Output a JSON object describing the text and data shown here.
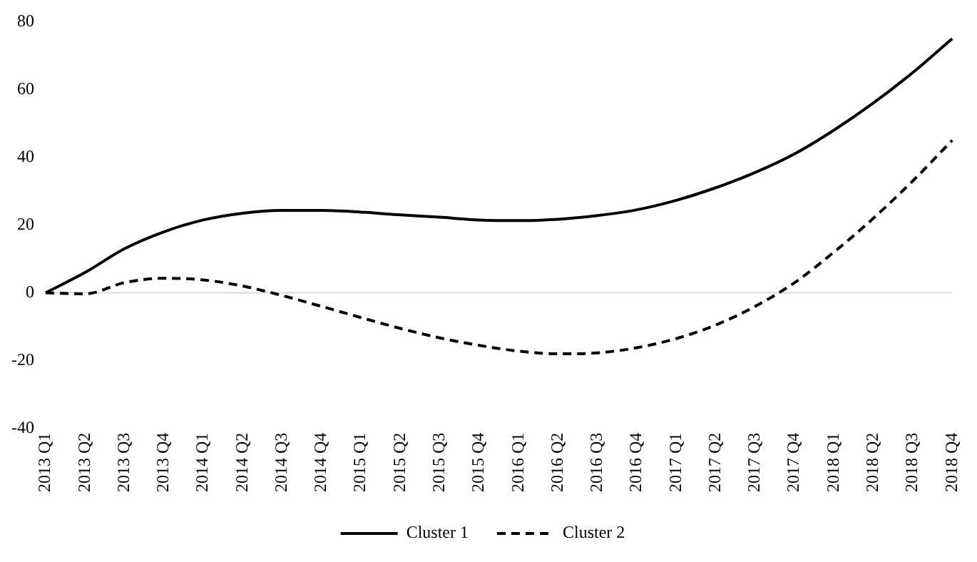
{
  "chart_data": {
    "type": "line",
    "categories": [
      "2013 Q1",
      "2013 Q2",
      "2013 Q3",
      "2013 Q4",
      "2014 Q1",
      "2014 Q2",
      "2014 Q3",
      "2014 Q4",
      "2015 Q1",
      "2015 Q2",
      "2015 Q3",
      "2015 Q4",
      "2016 Q1",
      "2016 Q2",
      "2016 Q3",
      "2016 Q4",
      "2017 Q1",
      "2017 Q2",
      "2017 Q3",
      "2017 Q4",
      "2018 Q1",
      "2018 Q2",
      "2018 Q3",
      "2018 Q4"
    ],
    "series": [
      {
        "name": "Cluster 1",
        "color": "#000000",
        "line_style": "solid",
        "values": [
          0,
          6,
          13,
          18,
          21.5,
          23.5,
          24.3,
          24.3,
          23.8,
          23,
          22.3,
          21.5,
          21.3,
          21.7,
          22.8,
          24.5,
          27.3,
          31,
          35.5,
          41,
          48,
          56,
          65,
          75
        ]
      },
      {
        "name": "Cluster 2",
        "color": "#000000",
        "line_style": "dashed",
        "values": [
          0,
          -0.3,
          3,
          4.3,
          3.8,
          2,
          -0.8,
          -4,
          -7.3,
          -10.5,
          -13.3,
          -15.5,
          -17.2,
          -18,
          -17.7,
          -16.2,
          -13.5,
          -9.5,
          -4,
          3,
          12,
          22,
          33,
          45
        ]
      }
    ],
    "ylim": [
      -40,
      80
    ],
    "yticks": [
      -40,
      -20,
      0,
      20,
      40,
      60,
      80
    ],
    "grid": false,
    "ref_lines": [
      {
        "axis": "y",
        "value": 0,
        "color": "#d9d9d9"
      }
    ],
    "legend": "bottom",
    "marker": "none"
  }
}
